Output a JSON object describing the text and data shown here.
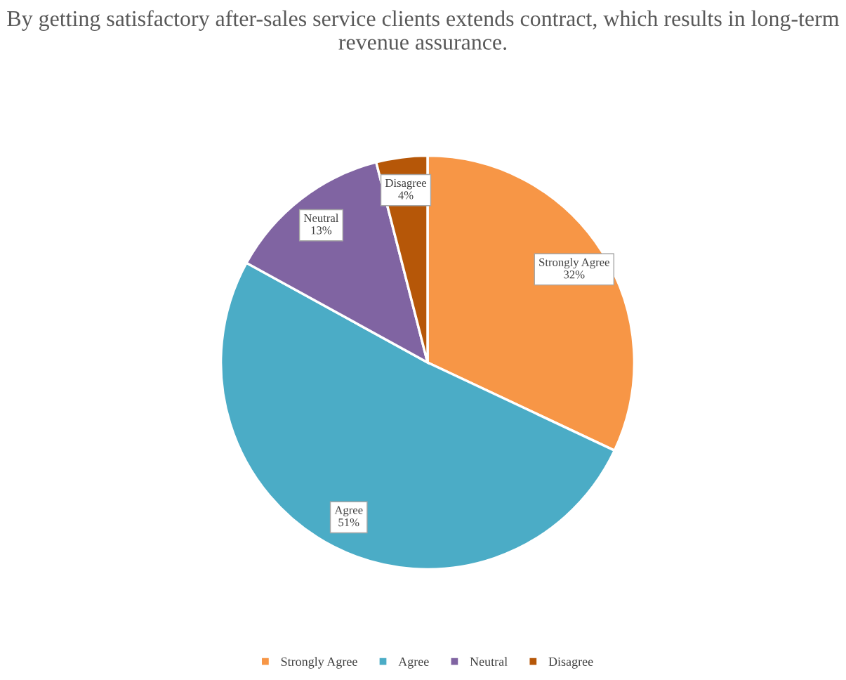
{
  "chart_data": {
    "type": "pie",
    "title": "By getting satisfactory after-sales service clients extends contract, which results in long-term revenue assurance.",
    "categories": [
      "Strongly Agree",
      "Agree",
      "Neutral",
      "Disagree"
    ],
    "values": [
      32,
      51,
      13,
      4
    ],
    "value_labels": [
      "32%",
      "51%",
      "13%",
      "4%"
    ],
    "colors": [
      "#f79646",
      "#4bacc6",
      "#8064a2",
      "#b65708"
    ],
    "legend": "bottom"
  }
}
